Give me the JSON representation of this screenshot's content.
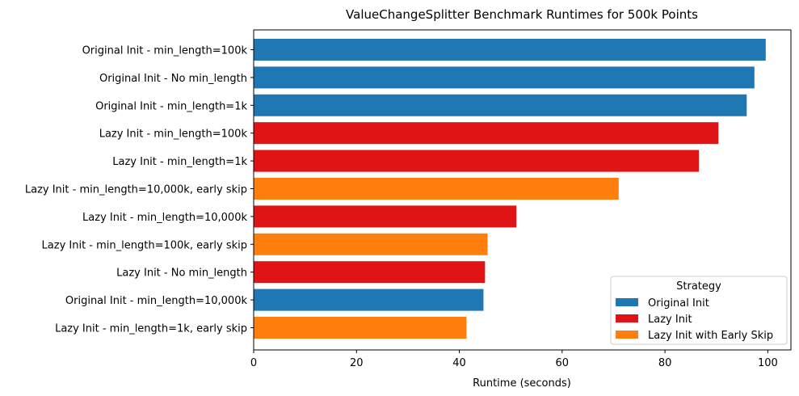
{
  "chart_data": {
    "type": "bar",
    "orientation": "horizontal",
    "title": "ValueChangeSplitter Benchmark Runtimes for 500k Points",
    "xlabel": "Runtime (seconds)",
    "ylabel": "",
    "xlim": [
      0,
      104.5
    ],
    "xticks": [
      0,
      20,
      40,
      60,
      80,
      100
    ],
    "grid": false,
    "legend_title": "Strategy",
    "legend_position": "lower-right",
    "legend": [
      {
        "name": "Original Init",
        "color": "#1f77b4"
      },
      {
        "name": "Lazy Init",
        "color": "#e01414"
      },
      {
        "name": "Lazy Init with Early Skip",
        "color": "#ff7f0e"
      }
    ],
    "bars": [
      {
        "label": "Original Init - min_length=100k",
        "value": 99.6,
        "strategy": "Original Init"
      },
      {
        "label": "Original Init - No min_length",
        "value": 97.4,
        "strategy": "Original Init"
      },
      {
        "label": "Original Init - min_length=1k",
        "value": 95.9,
        "strategy": "Original Init"
      },
      {
        "label": "Lazy Init - min_length=100k",
        "value": 90.4,
        "strategy": "Lazy Init"
      },
      {
        "label": "Lazy Init - min_length=1k",
        "value": 86.6,
        "strategy": "Lazy Init"
      },
      {
        "label": "Lazy Init - min_length=10,000k, early skip",
        "value": 71.0,
        "strategy": "Lazy Init with Early Skip"
      },
      {
        "label": "Lazy Init - min_length=10,000k",
        "value": 51.1,
        "strategy": "Lazy Init"
      },
      {
        "label": "Lazy Init - min_length=100k, early skip",
        "value": 45.5,
        "strategy": "Lazy Init with Early Skip"
      },
      {
        "label": "Lazy Init - No min_length",
        "value": 45.0,
        "strategy": "Lazy Init"
      },
      {
        "label": "Original Init - min_length=10,000k",
        "value": 44.7,
        "strategy": "Original Init"
      },
      {
        "label": "Lazy Init - min_length=1k, early skip",
        "value": 41.4,
        "strategy": "Lazy Init with Early Skip"
      }
    ]
  }
}
